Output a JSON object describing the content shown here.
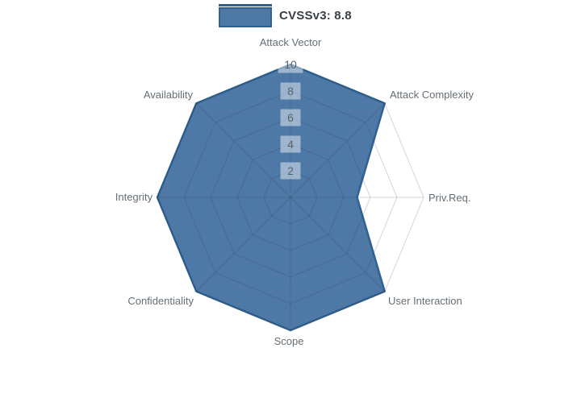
{
  "legend": {
    "items": [
      {
        "label": "CVSSv3: 8.8"
      }
    ]
  },
  "chart_data": {
    "type": "radar",
    "title": "",
    "categories": [
      "Attack Vector",
      "Attack Complexity",
      "Priv.Req.",
      "User Interaction",
      "Scope",
      "Confidentiality",
      "Integrity",
      "Availability"
    ],
    "series": [
      {
        "name": "CVSSv3: 8.8",
        "values": [
          10,
          10,
          5,
          10,
          10,
          10,
          10,
          10
        ],
        "fill_color": "#4e79a7",
        "line_color": "#31618f"
      }
    ],
    "radial_ticks": [
      "2",
      "4",
      "6",
      "8",
      "10"
    ],
    "rlim": [
      0,
      10
    ],
    "grid": true,
    "legend_position": "top-center",
    "colors": {
      "grid_line": "rgba(40,50,70,0.2)",
      "tick_box_bg": "rgba(255,255,255,0.45)",
      "tick_text": "#5a646e",
      "axis_label_text": "#666e76"
    }
  }
}
